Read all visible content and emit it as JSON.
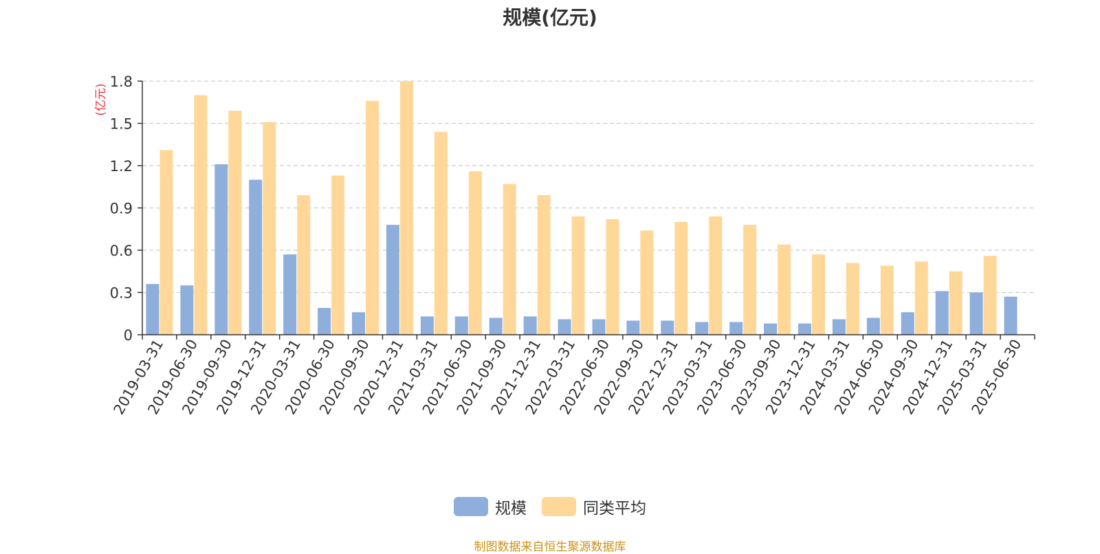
{
  "chart_data": {
    "type": "bar",
    "title": "规模(亿元)",
    "ylabel": "(亿元)",
    "xlabel": "",
    "ylim": [
      0,
      1.8
    ],
    "yticks": [
      "0",
      "0.3",
      "0.6",
      "0.9",
      "1.2",
      "1.5",
      "1.8"
    ],
    "ytick_values": [
      0,
      0.3,
      0.6,
      0.9,
      1.2,
      1.5,
      1.8
    ],
    "grid": true,
    "legend_position": "bottom-center",
    "categories": [
      "2019-03-31",
      "2019-06-30",
      "2019-09-30",
      "2019-12-31",
      "2020-03-31",
      "2020-06-30",
      "2020-09-30",
      "2020-12-31",
      "2021-03-31",
      "2021-06-30",
      "2021-09-30",
      "2021-12-31",
      "2022-03-31",
      "2022-06-30",
      "2022-09-30",
      "2022-12-31",
      "2023-03-31",
      "2023-06-30",
      "2023-09-30",
      "2023-12-31",
      "2024-03-31",
      "2024-06-30",
      "2024-09-30",
      "2024-12-31",
      "2025-03-31",
      "2025-06-30"
    ],
    "series": [
      {
        "name": "规模",
        "color": "#8eaedb",
        "values": [
          0.36,
          0.35,
          1.21,
          1.1,
          0.57,
          0.19,
          0.16,
          0.78,
          0.13,
          0.13,
          0.12,
          0.13,
          0.11,
          0.11,
          0.1,
          0.1,
          0.09,
          0.09,
          0.08,
          0.08,
          0.11,
          0.12,
          0.16,
          0.31,
          0.3,
          0.27
        ]
      },
      {
        "name": "同类平均",
        "color": "#ffd899",
        "values": [
          1.31,
          1.7,
          1.59,
          1.51,
          0.99,
          1.13,
          1.66,
          1.8,
          1.44,
          1.16,
          1.07,
          0.99,
          0.84,
          0.82,
          0.74,
          0.8,
          0.84,
          0.78,
          0.64,
          0.57,
          0.51,
          0.49,
          0.52,
          0.45,
          0.56,
          null
        ]
      }
    ]
  },
  "source_note": "制图数据来自恒生聚源数据库"
}
